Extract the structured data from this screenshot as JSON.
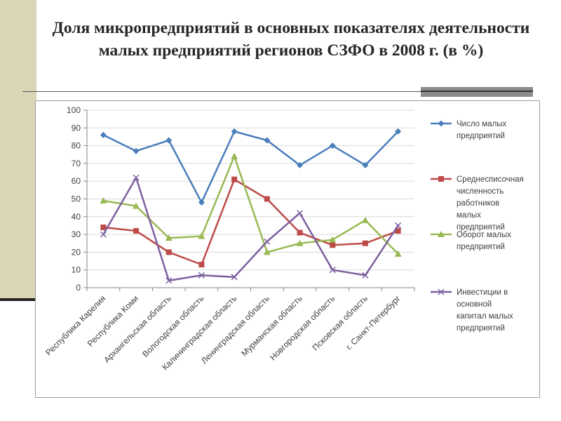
{
  "slide": {
    "title": "Доля микропредприятий в основных показателях деятельности малых предприятий регионов СЗФО в 2008 г. (в %)"
  },
  "colors": {
    "background": "#ffffff",
    "left_band": "#d8d6b4",
    "text": "#262626",
    "grid": "#d9d9d9"
  },
  "chart_data": {
    "type": "line",
    "title": "",
    "xlabel": "",
    "ylabel": "",
    "ylim": [
      0,
      100
    ],
    "yticks": [
      "0",
      "10",
      "20",
      "30",
      "40",
      "50",
      "60",
      "70",
      "80",
      "90",
      "100"
    ],
    "grid": true,
    "legend_position": "right",
    "categories": [
      "Республика Карелия",
      "Республика Коми",
      "Архангельская область",
      "Вологодская область",
      "Калининградская область",
      "Ленинградская область",
      "Мурманская область",
      "Новгородская область",
      "Псковская область",
      "г. Санкт-Петербург"
    ],
    "series": [
      {
        "name": "Число малых предприятий",
        "legend_lines": [
          "Число малых",
          "предприятий"
        ],
        "color": "#4a7ebb",
        "marker": "diamond",
        "values": [
          86,
          77,
          83,
          48,
          88,
          83,
          69,
          80,
          69,
          88
        ]
      },
      {
        "name": "Среднесписочная численность работников малых предприятий",
        "legend_lines": [
          "Среднесписочная",
          "численность",
          "работников",
          "малых",
          "предприятий"
        ],
        "color": "#be4b48",
        "marker": "square",
        "values": [
          34,
          32,
          20,
          13,
          61,
          50,
          31,
          24,
          25,
          32
        ]
      },
      {
        "name": "Оборот малых предприятий",
        "legend_lines": [
          "Оборот малых",
          "предприятий"
        ],
        "color": "#98b954",
        "marker": "triangle",
        "values": [
          49,
          46,
          28,
          29,
          74,
          20,
          25,
          27,
          38,
          19
        ]
      },
      {
        "name": "Инвестиции в основной капитал малых предприятий",
        "legend_lines": [
          "Инвестиции в",
          "основной",
          "капитал малых",
          "предприятий"
        ],
        "color": "#7d60a0",
        "marker": "x",
        "values": [
          30,
          62,
          4,
          7,
          6,
          26,
          42,
          10,
          7,
          35
        ]
      }
    ]
  }
}
